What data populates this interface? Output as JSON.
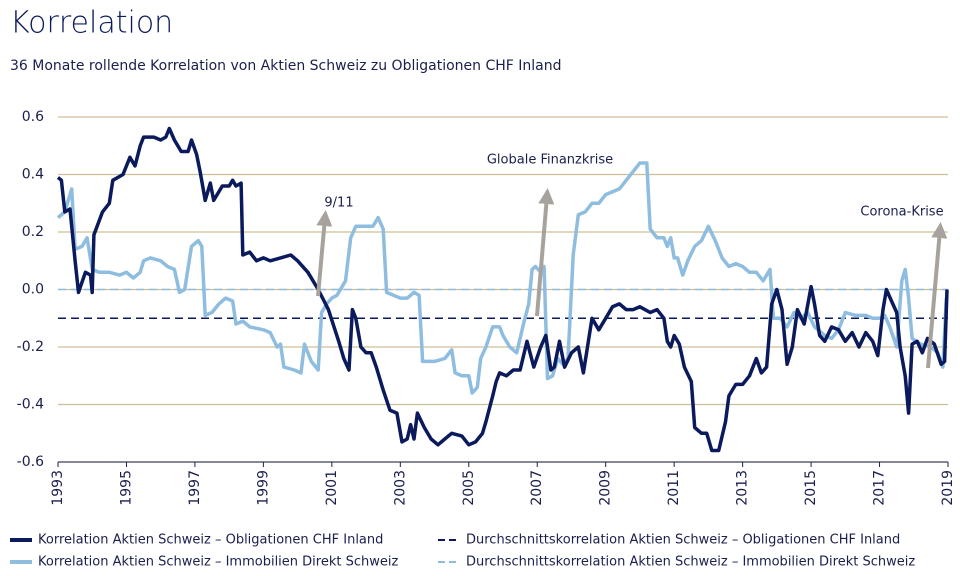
{
  "chart_data": {
    "type": "line",
    "title": "Korrelation",
    "subtitle": "36 Monate rollende Korrelation von Aktien Schweiz zu Obligationen CHF Inland",
    "xlim": [
      1993,
      2019
    ],
    "xticks": [
      1993,
      1995,
      1997,
      1999,
      2001,
      2003,
      2005,
      2007,
      2009,
      2011,
      2013,
      2015,
      2017,
      2019
    ],
    "ylim": [
      -0.6,
      0.6
    ],
    "yticks": [
      0.6,
      0.4,
      0.2,
      {
        "value": 0,
        "label": "0.0"
      },
      -0.2,
      -0.4,
      -0.6
    ],
    "grid": true,
    "grid_color": "#cdbf95",
    "series": [
      {
        "name": "Korrelation Aktien Schweiz – Obligationen CHF Inland",
        "color": "#0a1a5c",
        "x": [
          1993.0,
          1993.1,
          1993.2,
          1993.35,
          1993.5,
          1993.6,
          1993.8,
          1993.95,
          1994.0,
          1994.05,
          1994.3,
          1994.5,
          1994.6,
          1994.9,
          1995.1,
          1995.25,
          1995.4,
          1995.5,
          1995.8,
          1996.0,
          1996.15,
          1996.25,
          1996.4,
          1996.6,
          1996.8,
          1996.9,
          1997.05,
          1997.15,
          1997.3,
          1997.45,
          1997.55,
          1997.8,
          1998.0,
          1998.1,
          1998.2,
          1998.35,
          1998.4,
          1998.6,
          1998.8,
          1999.0,
          1999.2,
          1999.5,
          1999.8,
          2000.0,
          2000.3,
          2000.6,
          2000.9,
          2001.2,
          2001.35,
          2001.5,
          2001.6,
          2001.7,
          2001.85,
          2002.0,
          2002.15,
          2002.3,
          2002.5,
          2002.7,
          2002.9,
          2003.05,
          2003.2,
          2003.3,
          2003.4,
          2003.5,
          2003.7,
          2003.9,
          2004.1,
          2004.3,
          2004.5,
          2004.8,
          2005.0,
          2005.2,
          2005.4,
          2005.5,
          2005.7,
          2005.8,
          2005.9,
          2006.1,
          2006.3,
          2006.5,
          2006.7,
          2006.9,
          2007.1,
          2007.25,
          2007.4,
          2007.5,
          2007.65,
          2007.8,
          2008.0,
          2008.2,
          2008.35,
          2008.6,
          2008.8,
          2009.0,
          2009.2,
          2009.4,
          2009.6,
          2009.8,
          2010.0,
          2010.3,
          2010.5,
          2010.7,
          2010.8,
          2010.9,
          2011.0,
          2011.15,
          2011.3,
          2011.5,
          2011.6,
          2011.8,
          2011.95,
          2012.1,
          2012.3,
          2012.5,
          2012.6,
          2012.8,
          2013.0,
          2013.2,
          2013.4,
          2013.55,
          2013.7,
          2013.85,
          2014.0,
          2014.15,
          2014.3,
          2014.45,
          2014.6,
          2014.8,
          2015.0,
          2015.1,
          2015.25,
          2015.4,
          2015.6,
          2015.8,
          2016.0,
          2016.2,
          2016.4,
          2016.6,
          2016.8,
          2016.95,
          2017.1,
          2017.2,
          2017.35,
          2017.5,
          2017.6,
          2017.75,
          2017.85,
          2017.95,
          2018.1,
          2018.25,
          2018.4,
          2018.6,
          2018.8,
          2018.9,
          2018.97
        ],
        "values": [
          0.39,
          0.38,
          0.27,
          0.28,
          0.1,
          -0.01,
          0.06,
          0.05,
          -0.01,
          0.19,
          0.27,
          0.3,
          0.38,
          0.4,
          0.46,
          0.43,
          0.5,
          0.53,
          0.53,
          0.52,
          0.53,
          0.56,
          0.52,
          0.48,
          0.48,
          0.52,
          0.47,
          0.41,
          0.31,
          0.37,
          0.31,
          0.36,
          0.36,
          0.38,
          0.36,
          0.37,
          0.12,
          0.13,
          0.1,
          0.11,
          0.1,
          0.11,
          0.12,
          0.1,
          0.06,
          0.0,
          -0.07,
          -0.18,
          -0.24,
          -0.28,
          -0.07,
          -0.1,
          -0.2,
          -0.22,
          -0.22,
          -0.27,
          -0.35,
          -0.42,
          -0.43,
          -0.53,
          -0.52,
          -0.47,
          -0.52,
          -0.43,
          -0.48,
          -0.52,
          -0.54,
          -0.52,
          -0.5,
          -0.51,
          -0.54,
          -0.53,
          -0.5,
          -0.46,
          -0.37,
          -0.32,
          -0.29,
          -0.3,
          -0.28,
          -0.28,
          -0.18,
          -0.27,
          -0.2,
          -0.16,
          -0.28,
          -0.27,
          -0.18,
          -0.27,
          -0.22,
          -0.2,
          -0.29,
          -0.1,
          -0.14,
          -0.1,
          -0.06,
          -0.05,
          -0.07,
          -0.07,
          -0.06,
          -0.08,
          -0.07,
          -0.1,
          -0.18,
          -0.2,
          -0.16,
          -0.19,
          -0.27,
          -0.32,
          -0.48,
          -0.5,
          -0.5,
          -0.56,
          -0.56,
          -0.46,
          -0.37,
          -0.33,
          -0.33,
          -0.3,
          -0.24,
          -0.29,
          -0.27,
          -0.05,
          0.0,
          -0.07,
          -0.26,
          -0.2,
          -0.07,
          -0.12,
          0.01,
          -0.05,
          -0.16,
          -0.18,
          -0.13,
          -0.14,
          -0.18,
          -0.15,
          -0.2,
          -0.15,
          -0.18,
          -0.23,
          -0.07,
          0.0,
          -0.04,
          -0.08,
          -0.2,
          -0.3,
          -0.43,
          -0.19,
          -0.18,
          -0.22,
          -0.17,
          -0.19,
          -0.26,
          -0.25,
          0.0
        ]
      },
      {
        "name": "Korrelation Aktien Schweiz – Immobilien Direkt Schweiz",
        "color": "#8fbde0",
        "x": [
          1993.0,
          1993.2,
          1993.4,
          1993.5,
          1993.7,
          1993.85,
          1994.0,
          1994.2,
          1994.5,
          1994.8,
          1995.0,
          1995.2,
          1995.4,
          1995.5,
          1995.7,
          1996.0,
          1996.2,
          1996.4,
          1996.55,
          1996.7,
          1996.9,
          1997.1,
          1997.2,
          1997.3,
          1997.5,
          1997.7,
          1997.9,
          1998.1,
          1998.2,
          1998.4,
          1998.6,
          1999.0,
          1999.2,
          1999.4,
          1999.5,
          1999.6,
          1999.9,
          2000.1,
          2000.2,
          2000.4,
          2000.6,
          2000.7,
          2000.85,
          2001.0,
          2001.15,
          2001.25,
          2001.4,
          2001.55,
          2001.7,
          2002.0,
          2002.2,
          2002.35,
          2002.5,
          2002.6,
          2002.8,
          2003.0,
          2003.2,
          2003.4,
          2003.55,
          2003.65,
          2004.0,
          2004.3,
          2004.5,
          2004.6,
          2004.8,
          2005.0,
          2005.1,
          2005.25,
          2005.35,
          2005.5,
          2005.7,
          2005.9,
          2006.0,
          2006.2,
          2006.4,
          2006.6,
          2006.75,
          2006.85,
          2006.95,
          2007.1,
          2007.2,
          2007.3,
          2007.45,
          2007.6,
          2007.75,
          2007.9,
          2008.05,
          2008.2,
          2008.4,
          2008.6,
          2008.8,
          2009.0,
          2009.2,
          2009.4,
          2009.6,
          2009.8,
          2010.0,
          2010.2,
          2010.3,
          2010.5,
          2010.7,
          2010.8,
          2010.9,
          2011.0,
          2011.1,
          2011.25,
          2011.4,
          2011.6,
          2011.8,
          2012.0,
          2012.2,
          2012.4,
          2012.6,
          2012.8,
          2013.0,
          2013.2,
          2013.4,
          2013.6,
          2013.8,
          2013.9,
          2014.1,
          2014.3,
          2014.5,
          2014.7,
          2014.9,
          2015.1,
          2015.4,
          2015.6,
          2015.8,
          2016.0,
          2016.3,
          2016.6,
          2016.8,
          2017.0,
          2017.15,
          2017.3,
          2017.5,
          2017.65,
          2017.75,
          2017.85,
          2017.95,
          2018.2,
          2018.5,
          2018.7,
          2018.85,
          2018.95
        ],
        "values": [
          0.25,
          0.27,
          0.35,
          0.14,
          0.15,
          0.18,
          0.07,
          0.06,
          0.06,
          0.05,
          0.06,
          0.04,
          0.06,
          0.1,
          0.11,
          0.1,
          0.08,
          0.07,
          -0.01,
          0.0,
          0.15,
          0.17,
          0.15,
          -0.09,
          -0.08,
          -0.05,
          -0.03,
          -0.04,
          -0.12,
          -0.11,
          -0.13,
          -0.14,
          -0.15,
          -0.2,
          -0.19,
          -0.27,
          -0.28,
          -0.29,
          -0.19,
          -0.25,
          -0.28,
          -0.08,
          -0.05,
          -0.03,
          -0.02,
          0.0,
          0.03,
          0.18,
          0.22,
          0.22,
          0.22,
          0.25,
          0.21,
          -0.01,
          -0.02,
          -0.03,
          -0.03,
          -0.01,
          -0.02,
          -0.25,
          -0.25,
          -0.24,
          -0.21,
          -0.29,
          -0.3,
          -0.3,
          -0.36,
          -0.34,
          -0.24,
          -0.2,
          -0.13,
          -0.13,
          -0.16,
          -0.2,
          -0.22,
          -0.12,
          -0.05,
          0.07,
          0.08,
          0.06,
          0.08,
          -0.31,
          -0.3,
          -0.24,
          -0.26,
          -0.24,
          0.12,
          0.26,
          0.27,
          0.3,
          0.3,
          0.33,
          0.34,
          0.35,
          0.38,
          0.41,
          0.44,
          0.44,
          0.21,
          0.18,
          0.18,
          0.15,
          0.18,
          0.11,
          0.11,
          0.05,
          0.1,
          0.15,
          0.17,
          0.22,
          0.17,
          0.11,
          0.08,
          0.09,
          0.08,
          0.06,
          0.06,
          0.03,
          0.07,
          -0.1,
          -0.1,
          -0.13,
          -0.08,
          -0.1,
          -0.08,
          -0.13,
          -0.16,
          -0.17,
          -0.14,
          -0.08,
          -0.09,
          -0.09,
          -0.1,
          -0.1,
          -0.09,
          -0.13,
          -0.2,
          0.03,
          0.07,
          -0.03,
          -0.17,
          -0.19,
          -0.2,
          -0.22,
          -0.27,
          -0.03
        ]
      }
    ],
    "reference_lines": [
      {
        "name": "Durchschnittskorrelation Aktien Schweiz – Obligationen CHF Inland",
        "color": "#0a1a5c",
        "value": -0.1,
        "dashed": true
      },
      {
        "name": "Durchschnittskorrelation Aktien Schweiz – Immobilien Direkt Schweiz",
        "color": "#8fbde0",
        "value": 0,
        "dashed": true
      }
    ],
    "annotations": [
      "9/11",
      "Globale Finanzkrise",
      "Corona-Krise"
    ]
  }
}
